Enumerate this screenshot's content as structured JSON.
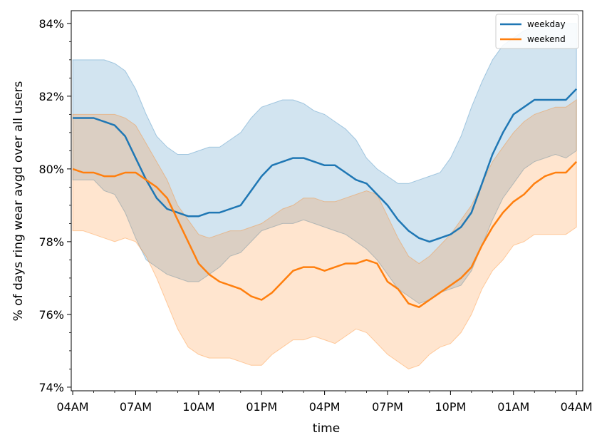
{
  "chart_data": {
    "type": "line",
    "title": "",
    "xlabel": "time",
    "ylabel": "% of days ring wear avgd over all users",
    "x_tick_labels": [
      "04AM",
      "07AM",
      "10AM",
      "01PM",
      "04PM",
      "07PM",
      "10PM",
      "01AM",
      "04AM"
    ],
    "y_tick_labels": [
      "74%",
      "76%",
      "78%",
      "80%",
      "82%",
      "84%"
    ],
    "y_ticks": [
      74,
      76,
      78,
      80,
      82,
      84
    ],
    "xlim": [
      3.93,
      28.3
    ],
    "ylim": [
      73.9,
      84.35
    ],
    "x_unit": "hours since 00:00 of first day",
    "grid": false,
    "legend_position": "upper right",
    "series": [
      {
        "name": "weekday",
        "color": "#1f77b4",
        "fill_color": "#1f77b4",
        "x": [
          4.0,
          4.5,
          5.0,
          5.5,
          6.0,
          6.5,
          7.0,
          7.5,
          8.0,
          8.5,
          9.0,
          9.5,
          10.0,
          10.5,
          11.0,
          11.5,
          12.0,
          12.5,
          13.0,
          13.5,
          14.0,
          14.5,
          15.0,
          15.5,
          16.0,
          16.5,
          17.0,
          17.5,
          18.0,
          18.5,
          19.0,
          19.5,
          20.0,
          20.5,
          21.0,
          21.5,
          22.0,
          22.5,
          23.0,
          23.5,
          24.0,
          24.5,
          25.0,
          25.5,
          26.0,
          26.5,
          27.0,
          27.5,
          28.0
        ],
        "mean": [
          81.4,
          81.4,
          81.4,
          81.3,
          81.2,
          80.9,
          80.3,
          79.7,
          79.2,
          78.9,
          78.8,
          78.7,
          78.7,
          78.8,
          78.8,
          78.9,
          79.0,
          79.4,
          79.8,
          80.1,
          80.2,
          80.3,
          80.3,
          80.2,
          80.1,
          80.1,
          79.9,
          79.7,
          79.6,
          79.3,
          79.0,
          78.6,
          78.3,
          78.1,
          78.0,
          78.1,
          78.2,
          78.4,
          78.8,
          79.6,
          80.4,
          81.0,
          81.5,
          81.7,
          81.9,
          81.9,
          81.9,
          81.9,
          82.2
        ],
        "lower": [
          79.7,
          79.7,
          79.7,
          79.4,
          79.3,
          78.8,
          78.1,
          77.5,
          77.3,
          77.1,
          77.0,
          76.9,
          76.9,
          77.1,
          77.3,
          77.6,
          77.7,
          78.0,
          78.3,
          78.4,
          78.5,
          78.5,
          78.6,
          78.5,
          78.4,
          78.3,
          78.2,
          78.0,
          77.8,
          77.5,
          77.1,
          76.7,
          76.5,
          76.3,
          76.4,
          76.6,
          76.7,
          76.8,
          77.2,
          77.9,
          78.6,
          79.2,
          79.6,
          80.0,
          80.2,
          80.3,
          80.4,
          80.3,
          80.5
        ],
        "upper": [
          83.0,
          83.0,
          83.0,
          83.0,
          82.9,
          82.7,
          82.2,
          81.5,
          80.9,
          80.6,
          80.4,
          80.4,
          80.5,
          80.6,
          80.6,
          80.8,
          81.0,
          81.4,
          81.7,
          81.8,
          81.9,
          81.9,
          81.8,
          81.6,
          81.5,
          81.3,
          81.1,
          80.8,
          80.3,
          80.0,
          79.8,
          79.6,
          79.6,
          79.7,
          79.8,
          79.9,
          80.3,
          80.9,
          81.7,
          82.4,
          83.0,
          83.4,
          83.6,
          83.8,
          83.9,
          84.0,
          84.0,
          84.0,
          84.0
        ]
      },
      {
        "name": "weekend",
        "color": "#ff7f0e",
        "fill_color": "#ff7f0e",
        "x": [
          4.0,
          4.5,
          5.0,
          5.5,
          6.0,
          6.5,
          7.0,
          7.5,
          8.0,
          8.5,
          9.0,
          9.5,
          10.0,
          10.5,
          11.0,
          11.5,
          12.0,
          12.5,
          13.0,
          13.5,
          14.0,
          14.5,
          15.0,
          15.5,
          16.0,
          16.5,
          17.0,
          17.5,
          18.0,
          18.5,
          19.0,
          19.5,
          20.0,
          20.5,
          21.0,
          21.5,
          22.0,
          22.5,
          23.0,
          23.5,
          24.0,
          24.5,
          25.0,
          25.5,
          26.0,
          26.5,
          27.0,
          27.5,
          28.0
        ],
        "mean": [
          80.0,
          79.9,
          79.9,
          79.8,
          79.8,
          79.9,
          79.9,
          79.7,
          79.5,
          79.2,
          78.6,
          78.0,
          77.4,
          77.1,
          76.9,
          76.8,
          76.7,
          76.5,
          76.4,
          76.6,
          76.9,
          77.2,
          77.3,
          77.3,
          77.2,
          77.3,
          77.4,
          77.4,
          77.5,
          77.4,
          76.9,
          76.7,
          76.3,
          76.2,
          76.4,
          76.6,
          76.8,
          77.0,
          77.3,
          77.9,
          78.4,
          78.8,
          79.1,
          79.3,
          79.6,
          79.8,
          79.9,
          79.9,
          80.2
        ],
        "lower": [
          78.3,
          78.3,
          78.2,
          78.1,
          78.0,
          78.1,
          78.0,
          77.6,
          77.0,
          76.3,
          75.6,
          75.1,
          74.9,
          74.8,
          74.8,
          74.8,
          74.7,
          74.6,
          74.6,
          74.9,
          75.1,
          75.3,
          75.3,
          75.4,
          75.3,
          75.2,
          75.4,
          75.6,
          75.5,
          75.2,
          74.9,
          74.7,
          74.5,
          74.6,
          74.9,
          75.1,
          75.2,
          75.5,
          76.0,
          76.7,
          77.2,
          77.5,
          77.9,
          78.0,
          78.2,
          78.2,
          78.2,
          78.2,
          78.4
        ],
        "upper": [
          81.5,
          81.5,
          81.5,
          81.5,
          81.5,
          81.4,
          81.2,
          80.7,
          80.2,
          79.7,
          79.0,
          78.6,
          78.2,
          78.1,
          78.2,
          78.3,
          78.3,
          78.4,
          78.5,
          78.7,
          78.9,
          79.0,
          79.2,
          79.2,
          79.1,
          79.1,
          79.2,
          79.3,
          79.4,
          79.3,
          78.7,
          78.1,
          77.6,
          77.4,
          77.6,
          77.9,
          78.2,
          78.6,
          79.0,
          79.6,
          80.2,
          80.6,
          81.0,
          81.3,
          81.5,
          81.6,
          81.7,
          81.7,
          81.9
        ]
      }
    ]
  }
}
